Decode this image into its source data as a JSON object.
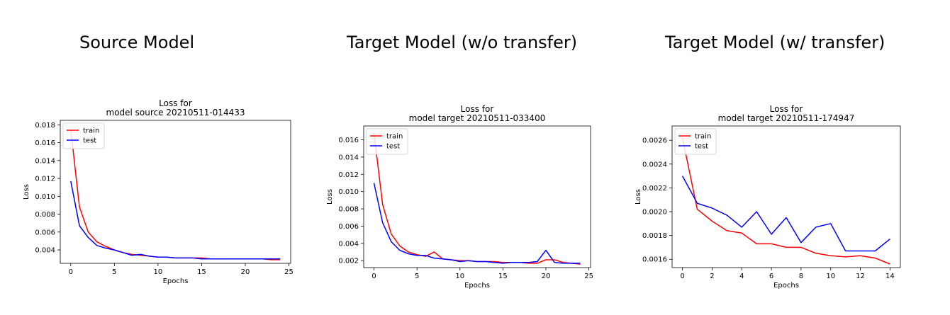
{
  "headings": [
    "Source Model",
    "Target Model (w/o transfer)",
    "Target Model (w/ transfer)"
  ],
  "colors": {
    "train": "#ff0000",
    "test": "#0000ff"
  },
  "chart_data": [
    {
      "type": "line",
      "title": "Loss for\nmodel source 20210511-014433",
      "xlabel": "Epochs",
      "ylabel": "Loss",
      "xlim": [
        -1.2,
        25.2
      ],
      "ylim": [
        0.0025,
        0.0185
      ],
      "xticks": [
        0,
        5,
        10,
        15,
        20,
        25
      ],
      "yticks": [
        0.004,
        0.006,
        0.008,
        0.01,
        0.012,
        0.014,
        0.016,
        0.018
      ],
      "legend": "top-left",
      "series": [
        {
          "name": "train",
          "x": [
            0,
            1,
            2,
            3,
            4,
            5,
            6,
            7,
            8,
            9,
            10,
            11,
            12,
            13,
            14,
            15,
            16,
            17,
            18,
            19,
            20,
            21,
            22,
            23,
            24
          ],
          "values": [
            0.0175,
            0.0088,
            0.006,
            0.0049,
            0.0044,
            0.004,
            0.0037,
            0.0035,
            0.0034,
            0.0033,
            0.0032,
            0.0032,
            0.0031,
            0.0031,
            0.0031,
            0.0031,
            0.003,
            0.003,
            0.003,
            0.003,
            0.003,
            0.003,
            0.003,
            0.0029,
            0.0029
          ]
        },
        {
          "name": "test",
          "x": [
            0,
            1,
            2,
            3,
            4,
            5,
            6,
            7,
            8,
            9,
            10,
            11,
            12,
            13,
            14,
            15,
            16,
            17,
            18,
            19,
            20,
            21,
            22,
            23,
            24
          ],
          "values": [
            0.0117,
            0.0067,
            0.0054,
            0.0045,
            0.0042,
            0.004,
            0.0037,
            0.0034,
            0.0035,
            0.0033,
            0.0032,
            0.0032,
            0.0031,
            0.0031,
            0.0031,
            0.003,
            0.003,
            0.003,
            0.003,
            0.003,
            0.003,
            0.003,
            0.003,
            0.003,
            0.003
          ]
        }
      ]
    },
    {
      "type": "line",
      "title": "Loss for\nmodel target 20210511-033400",
      "xlabel": "Epochs",
      "ylabel": "Loss",
      "xlim": [
        -1.2,
        25.2
      ],
      "ylim": [
        0.0012,
        0.0176
      ],
      "xticks": [
        0,
        5,
        10,
        15,
        20,
        25
      ],
      "yticks": [
        0.002,
        0.004,
        0.006,
        0.008,
        0.01,
        0.012,
        0.014,
        0.016
      ],
      "legend": "top-left",
      "series": [
        {
          "name": "train",
          "x": [
            0,
            1,
            2,
            3,
            4,
            5,
            6,
            7,
            8,
            9,
            10,
            11,
            12,
            13,
            14,
            15,
            16,
            17,
            18,
            19,
            20,
            21,
            22,
            23,
            24
          ],
          "values": [
            0.0168,
            0.0085,
            0.0051,
            0.0037,
            0.003,
            0.0027,
            0.0025,
            0.003,
            0.0022,
            0.0021,
            0.002,
            0.002,
            0.0019,
            0.0019,
            0.0019,
            0.0018,
            0.0018,
            0.0018,
            0.0017,
            0.0017,
            0.0021,
            0.0021,
            0.0018,
            0.0017,
            0.0016
          ]
        },
        {
          "name": "test",
          "x": [
            0,
            1,
            2,
            3,
            4,
            5,
            6,
            7,
            8,
            9,
            10,
            11,
            12,
            13,
            14,
            15,
            16,
            17,
            18,
            19,
            20,
            21,
            22,
            23,
            24
          ],
          "values": [
            0.011,
            0.0064,
            0.0042,
            0.0032,
            0.0028,
            0.0026,
            0.0026,
            0.0023,
            0.0022,
            0.0021,
            0.0019,
            0.002,
            0.0019,
            0.0019,
            0.0018,
            0.0017,
            0.0018,
            0.0018,
            0.0018,
            0.0019,
            0.0032,
            0.0018,
            0.0017,
            0.0017,
            0.0017
          ]
        }
      ]
    },
    {
      "type": "line",
      "title": "Loss for\nmodel target 20210511-174947",
      "xlabel": "Epochs",
      "ylabel": "Loss",
      "xlim": [
        -0.7,
        14.7
      ],
      "ylim": [
        0.00153,
        0.00272
      ],
      "xticks": [
        0,
        2,
        4,
        6,
        8,
        10,
        12,
        14
      ],
      "yticks": [
        0.0016,
        0.0018,
        0.002,
        0.0022,
        0.0024,
        0.0026
      ],
      "legend": "top-left",
      "series": [
        {
          "name": "train",
          "x": [
            0,
            1,
            2,
            3,
            4,
            5,
            6,
            7,
            8,
            9,
            10,
            11,
            12,
            13,
            14
          ],
          "values": [
            0.00262,
            0.00202,
            0.00192,
            0.00184,
            0.00182,
            0.00173,
            0.00173,
            0.0017,
            0.0017,
            0.00165,
            0.00163,
            0.00162,
            0.00163,
            0.00161,
            0.00156
          ]
        },
        {
          "name": "test",
          "x": [
            0,
            1,
            2,
            3,
            4,
            5,
            6,
            7,
            8,
            9,
            10,
            11,
            12,
            13,
            14
          ],
          "values": [
            0.0023,
            0.00207,
            0.00203,
            0.00197,
            0.00187,
            0.002,
            0.00181,
            0.00195,
            0.00174,
            0.00187,
            0.0019,
            0.00167,
            0.00167,
            0.00167,
            0.00177
          ]
        }
      ]
    }
  ]
}
